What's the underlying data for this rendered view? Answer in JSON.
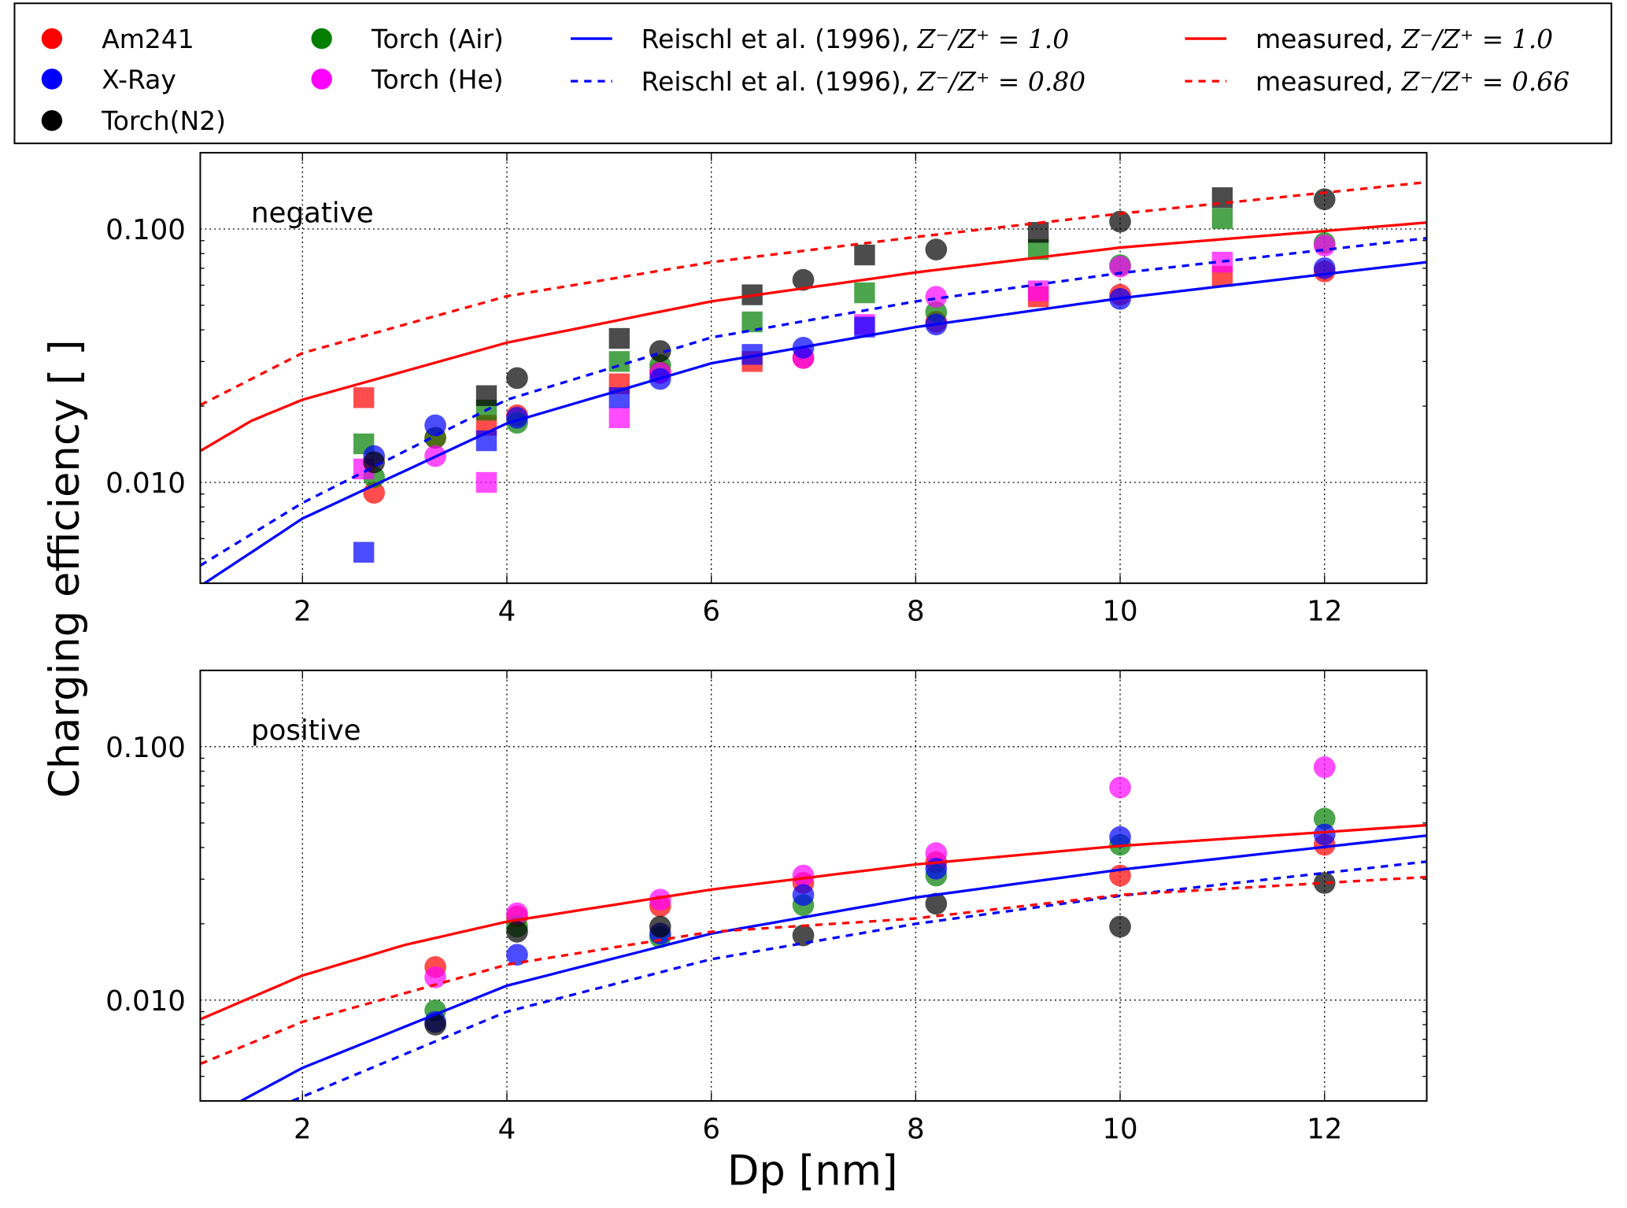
{
  "chart_data": {
    "type": "scatter",
    "xlabel": "Dp [nm]",
    "ylabel": "Charging efficiency [ ]",
    "xlim": [
      1,
      13
    ],
    "ylim": [
      0.004,
      0.2
    ],
    "yscale": "log",
    "grid": true,
    "legend_placement": "top, outside",
    "x_ticks": [
      "2",
      "4",
      "6",
      "8",
      "10",
      "12"
    ],
    "y_ticks": [
      {
        "value": 0.1,
        "label": "0.100"
      },
      {
        "value": 0.01,
        "label": "0.010"
      }
    ],
    "legend": {
      "markers": [
        {
          "name": "Am241",
          "color": "#ff0000"
        },
        {
          "name": "X-Ray",
          "color": "#0000ff"
        },
        {
          "name": "Torch(N2)",
          "color": "#000000"
        },
        {
          "name": "Torch (Air)",
          "color": "#007f00"
        },
        {
          "name": "Torch (He)",
          "color": "#ff00ff"
        }
      ],
      "lines": [
        {
          "prefix": "Reischl et al. (1996), ",
          "math": "Z⁻/Z⁺ = 1.0",
          "color": "#0000ff",
          "style": "solid"
        },
        {
          "prefix": "Reischl et al. (1996), ",
          "math": "Z⁻/Z⁺ = 0.80",
          "color": "#0000ff",
          "style": "dashed"
        },
        {
          "prefix": "measured, ",
          "math": "Z⁻/Z⁺ = 1.0",
          "color": "#ff0000",
          "style": "solid"
        },
        {
          "prefix": "measured, ",
          "math": "Z⁻/Z⁺ = 0.66",
          "color": "#ff0000",
          "style": "dashed"
        }
      ]
    },
    "panels": [
      {
        "label": "negative",
        "curves": [
          {
            "legend": 0,
            "x": [
              1,
              2,
              4,
              6,
              8,
              10,
              13
            ],
            "y": [
              0.0039,
              0.0072,
              0.0171,
              0.0295,
              0.041,
              0.0533,
              0.074
            ]
          },
          {
            "legend": 1,
            "x": [
              1,
              2,
              4,
              6,
              8,
              10,
              13
            ],
            "y": [
              0.0047,
              0.0083,
              0.0212,
              0.0373,
              0.0518,
              0.067,
              0.092
            ]
          },
          {
            "legend": 2,
            "x": [
              1,
              1.5,
              2,
              4,
              6,
              8,
              10,
              13
            ],
            "y": [
              0.0133,
              0.0175,
              0.0212,
              0.0356,
              0.0518,
              0.0674,
              0.0845,
              0.106
            ]
          },
          {
            "legend": 3,
            "x": [
              1,
              2,
              4,
              6,
              8,
              10,
              13
            ],
            "y": [
              0.0202,
              0.0324,
              0.0543,
              0.074,
              0.093,
              0.115,
              0.153
            ]
          }
        ],
        "series": [
          {
            "name": "Am241",
            "circles": {
              "x": [
                2.7,
                3.3,
                4.1,
                5.5,
                6.9,
                8.2,
                10,
                12
              ],
              "y": [
                0.0091,
                0.015,
                0.0184,
                0.0273,
                0.031,
                0.043,
                0.055,
                0.068
              ]
            },
            "squares": {
              "x": [
                2.6,
                3.8,
                5.1,
                6.4,
                9.2,
                11
              ],
              "y": [
                0.0216,
                0.0168,
                0.0245,
                0.03,
                0.054,
                0.065
              ]
            }
          },
          {
            "name": "Torch (Air)",
            "circles": {
              "x": [
                2.7,
                3.3,
                4.1,
                5.5,
                8.2,
                10,
                12
              ],
              "y": [
                0.0105,
                0.015,
                0.0172,
                0.029,
                0.047,
                0.072,
                0.088
              ]
            },
            "squares": {
              "x": [
                2.6,
                3.8,
                5.1,
                6.4,
                7.5,
                9.2,
                11
              ],
              "y": [
                0.0142,
                0.0193,
                0.03,
                0.043,
                0.056,
                0.083,
                0.11
              ]
            }
          },
          {
            "name": "Torch (He)",
            "circles": {
              "x": [
                3.3,
                5.5,
                6.9,
                8.2,
                10,
                12
              ],
              "y": [
                0.0127,
                0.027,
                0.031,
                0.054,
                0.071,
                0.086
              ]
            },
            "squares": {
              "x": [
                2.6,
                3.8,
                5.1,
                7.5,
                9.2,
                11
              ],
              "y": [
                0.0113,
                0.01,
                0.018,
                0.042,
                0.057,
                0.074
              ]
            }
          },
          {
            "name": "X-Ray",
            "circles": {
              "x": [
                2.7,
                3.3,
                4.1,
                5.5,
                6.9,
                8.2,
                10,
                12
              ],
              "y": [
                0.0127,
                0.0168,
                0.018,
                0.0256,
                0.034,
                0.042,
                0.053,
                0.07
              ]
            },
            "squares": {
              "x": [
                2.6,
                3.8,
                5.1,
                6.4,
                7.5
              ],
              "y": [
                0.0053,
                0.0146,
                0.0216,
                0.032,
                0.041
              ]
            }
          },
          {
            "name": "Torch(N2)",
            "circles": {
              "x": [
                2.7,
                4.1,
                5.5,
                6.9,
                8.2,
                10,
                12
              ],
              "y": [
                0.012,
                0.0258,
                0.033,
                0.063,
                0.083,
                0.107,
                0.131
              ]
            },
            "squares": {
              "x": [
                3.8,
                5.1,
                6.4,
                7.5,
                9.2,
                11
              ],
              "y": [
                0.022,
                0.037,
                0.055,
                0.079,
                0.097,
                0.133
              ]
            }
          }
        ]
      },
      {
        "label": "positive",
        "curves": [
          {
            "legend": 0,
            "x": [
              1.4,
              2,
              4,
              6,
              8,
              10,
              13
            ],
            "y": [
              0.004,
              0.0054,
              0.0114,
              0.0183,
              0.0254,
              0.0327,
              0.0446
            ]
          },
          {
            "legend": 1,
            "x": [
              1.9,
              4,
              6,
              8,
              10,
              13
            ],
            "y": [
              0.004,
              0.009,
              0.0145,
              0.02,
              0.0258,
              0.0352
            ]
          },
          {
            "legend": 2,
            "x": [
              1,
              2,
              3,
              4,
              6,
              8,
              10,
              13
            ],
            "y": [
              0.0084,
              0.0125,
              0.0165,
              0.0204,
              0.0273,
              0.0343,
              0.0406,
              0.049
            ]
          },
          {
            "legend": 3,
            "x": [
              1,
              2,
              4,
              6,
              8,
              10,
              13
            ],
            "y": [
              0.0056,
              0.0082,
              0.0138,
              0.0186,
              0.021,
              0.026,
              0.0306
            ]
          }
        ],
        "series": [
          {
            "name": "Am241",
            "circles": {
              "x": [
                3.3,
                4.1,
                5.5,
                6.9,
                8.2,
                10,
                12
              ],
              "y": [
                0.0135,
                0.0214,
                0.0235,
                0.029,
                0.035,
                0.031,
                0.041
              ]
            }
          },
          {
            "name": "Torch (Air)",
            "circles": {
              "x": [
                3.3,
                4.1,
                5.5,
                6.9,
                8.2,
                10,
                12
              ],
              "y": [
                0.0091,
                0.0195,
                0.0177,
                0.0237,
                0.031,
                0.041,
                0.052
              ]
            }
          },
          {
            "name": "Torch (He)",
            "circles": {
              "x": [
                3.3,
                4.1,
                5.5,
                6.9,
                8.2,
                10,
                12
              ],
              "y": [
                0.0123,
                0.022,
                0.0249,
                0.031,
                0.038,
                0.069,
                0.083
              ]
            }
          },
          {
            "name": "X-Ray",
            "circles": {
              "x": [
                3.3,
                4.1,
                5.5,
                6.9,
                8.2,
                10,
                12
              ],
              "y": [
                0.0082,
                0.0151,
                0.0183,
                0.026,
                0.033,
                0.044,
                0.045
              ]
            }
          },
          {
            "name": "Torch(N2)",
            "circles": {
              "x": [
                3.3,
                4.1,
                5.5,
                6.9,
                8.2,
                10,
                12
              ],
              "y": [
                0.008,
                0.0186,
                0.0195,
                0.018,
                0.024,
                0.0195,
                0.029
              ]
            }
          }
        ]
      }
    ]
  }
}
